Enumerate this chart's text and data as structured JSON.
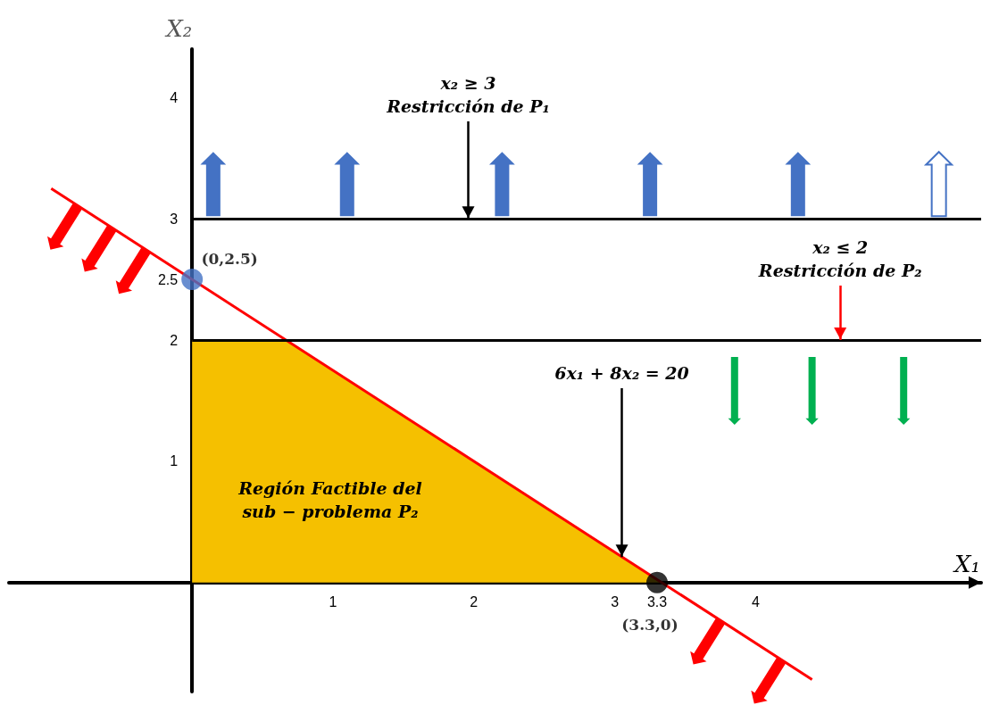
{
  "chart_data": {
    "type": "line",
    "xlabel": "X₁",
    "ylabel": "X₂",
    "xlim": [
      -1.3,
      5.6
    ],
    "ylim": [
      -0.9,
      4.4
    ],
    "xticks": [
      1,
      2,
      3,
      3.3,
      4
    ],
    "yticks": [
      1,
      2,
      2.5,
      3,
      4
    ],
    "grid": false,
    "series": [
      {
        "type": "area",
        "color": "#f5c000",
        "x": [
          0,
          0.67,
          3.33
        ],
        "values": [
          2,
          2,
          0
        ]
      },
      {
        "color": "#ff0000",
        "x": [
          -1,
          4.4
        ],
        "values": [
          3.25,
          -0.8
        ]
      },
      {
        "type": "scatter",
        "color": "#4472c4",
        "x": [
          0
        ],
        "values": [
          2.5
        ],
        "value_labels": [
          "(0,2.5)"
        ]
      },
      {
        "type": "scatter",
        "color": "#000000",
        "x": [
          3.3
        ],
        "values": [
          0
        ],
        "value_labels": [
          "(3.3,0)"
        ]
      }
    ],
    "ref_lines": [
      {
        "axis": "y",
        "value": 3,
        "color": "#000000"
      },
      {
        "axis": "y",
        "value": 2,
        "color": "#000000"
      }
    ],
    "annotations": [
      {
        "text": "x₂ ≥ 3\nRestricción de P₁",
        "x": 1.96,
        "y": 3
      },
      {
        "text": "x₂ ≤ 2\nRestricción de P₂",
        "x": 4.6,
        "y": 2
      },
      {
        "text": "6x₁ + 8x₂ = 20",
        "x": 3.05,
        "y": 0.21
      },
      "Región Factible del\nsub − problema P₂"
    ]
  }
}
